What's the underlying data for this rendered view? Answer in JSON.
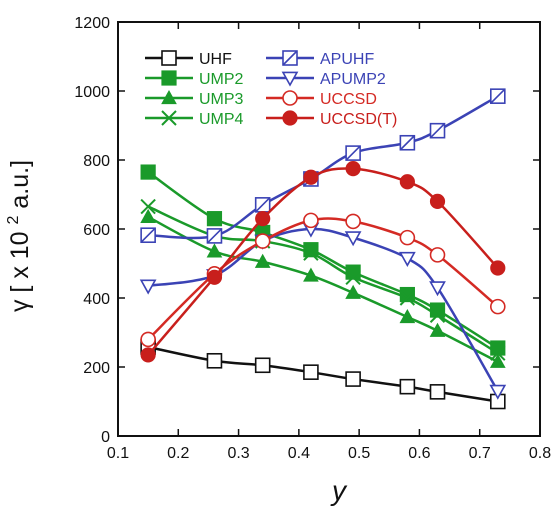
{
  "chart_data": {
    "type": "line",
    "title": "",
    "xlabel": "y",
    "ylabel": {
      "symbol": "γ",
      "prefix": "[ x 10",
      "exponent": "2",
      "suffix": " a.u.]"
    },
    "xlim": [
      0.1,
      0.8
    ],
    "ylim": [
      0,
      1200
    ],
    "xticks": [
      "0.1",
      "0.2",
      "0.3",
      "0.4",
      "0.5",
      "0.6",
      "0.7",
      "0.8"
    ],
    "yticks": [
      "0",
      "200",
      "400",
      "600",
      "800",
      "1000",
      "1200"
    ],
    "xtick_values": [
      0.1,
      0.2,
      0.3,
      0.4,
      0.5,
      0.6,
      0.7,
      0.8
    ],
    "ytick_values": [
      0,
      200,
      400,
      600,
      800,
      1000,
      1200
    ],
    "grid": false,
    "legend_position": "top",
    "x": [
      0.15,
      0.26,
      0.34,
      0.42,
      0.49,
      0.58,
      0.63,
      0.73
    ],
    "series": [
      {
        "name": "UHF",
        "color": "#111111",
        "marker": "square-open",
        "values": [
          258,
          218,
          205,
          185,
          165,
          143,
          128,
          100
        ]
      },
      {
        "name": "UMP2",
        "color": "#1a9a2a",
        "marker": "square-filled",
        "values": [
          765,
          630,
          590,
          540,
          475,
          410,
          365,
          255
        ]
      },
      {
        "name": "UMP3",
        "color": "#1a9a2a",
        "marker": "triangle-filled",
        "values": [
          635,
          535,
          505,
          465,
          415,
          345,
          305,
          215
        ]
      },
      {
        "name": "UMP4",
        "color": "#1a9a2a",
        "marker": "x",
        "values": [
          665,
          580,
          565,
          530,
          460,
          400,
          350,
          240
        ]
      },
      {
        "name": "APUHF",
        "color": "#3b43b5",
        "marker": "square-slash",
        "values": [
          582,
          580,
          670,
          745,
          820,
          850,
          885,
          985
        ]
      },
      {
        "name": "APUMP2",
        "color": "#3b43b5",
        "marker": "triangle-down-open",
        "values": [
          435,
          465,
          565,
          600,
          575,
          515,
          430,
          130
        ]
      },
      {
        "name": "UCCSD",
        "color": "#d42a24",
        "marker": "circle-open",
        "values": [
          280,
          470,
          565,
          625,
          622,
          575,
          525,
          375
        ]
      },
      {
        "name": "UCCSD(T)",
        "color": "#c81f1c",
        "marker": "circle-filled",
        "values": [
          235,
          460,
          630,
          750,
          775,
          737,
          680,
          487
        ]
      }
    ]
  }
}
